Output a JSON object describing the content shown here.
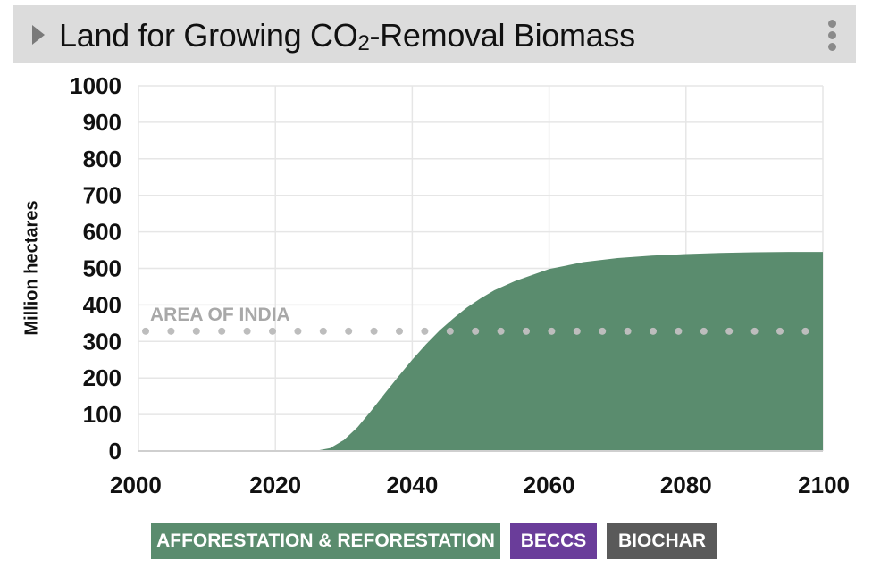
{
  "header": {
    "title_main": "Land for Growing CO",
    "title_sub": "2",
    "title_rest": "-Removal Biomass"
  },
  "chart_data": {
    "type": "area",
    "title": "Land for Growing CO2-Removal Biomass",
    "xlabel": "",
    "ylabel": "Million hectares",
    "xlim": [
      2000,
      2100
    ],
    "ylim": [
      0,
      1000
    ],
    "xticks": [
      2000,
      2020,
      2040,
      2060,
      2080,
      2100
    ],
    "yticks": [
      0,
      100,
      200,
      300,
      400,
      500,
      600,
      700,
      800,
      900,
      1000
    ],
    "grid": true,
    "series": [
      {
        "name": "AFFORESTATION & REFORESTATION",
        "color": "#5a8c6e",
        "x": [
          2000,
          2010,
          2020,
          2025,
          2026,
          2028,
          2030,
          2032,
          2034,
          2036,
          2038,
          2040,
          2042,
          2044,
          2046,
          2048,
          2050,
          2052,
          2055,
          2060,
          2065,
          2070,
          2075,
          2080,
          2085,
          2090,
          2095,
          2100
        ],
        "y": [
          0,
          0,
          0,
          0,
          1,
          8,
          30,
          65,
          110,
          158,
          205,
          250,
          292,
          330,
          363,
          393,
          418,
          440,
          465,
          498,
          517,
          528,
          535,
          539,
          542,
          544,
          545,
          545
        ]
      }
    ],
    "reference_line": {
      "label": "AREA OF INDIA",
      "value": 328,
      "color": "#bdbdbd"
    },
    "legend": [
      {
        "label": "AFFORESTATION & REFORESTATION",
        "color": "#5a8c6e"
      },
      {
        "label": "BECCS",
        "color": "#6a3d9a"
      },
      {
        "label": "BIOCHAR",
        "color": "#5a5a5a"
      }
    ]
  }
}
